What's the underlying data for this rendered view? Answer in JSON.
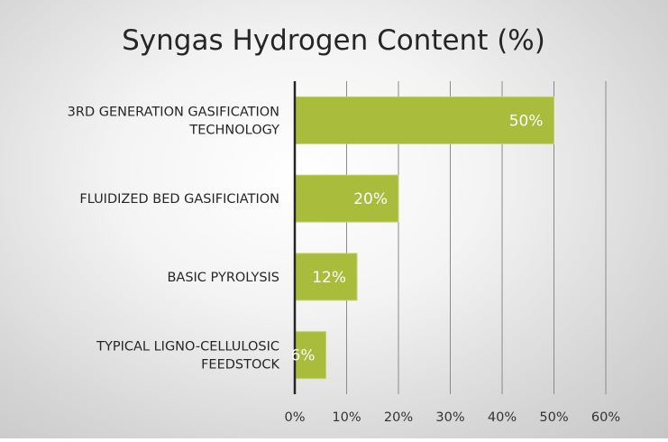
{
  "chart_data": {
    "type": "bar",
    "orientation": "horizontal",
    "title": "Syngas Hydrogen Content (%)",
    "categories": [
      [
        "3RD GENERATION GASIFICATION",
        "TECHNOLOGY"
      ],
      [
        "FLUIDIZED BED GASIFICIATION"
      ],
      [
        "BASIC PYROLYSIS"
      ],
      [
        "TYPICAL LIGNO-CELLULOSIC",
        "FEEDSTOCK"
      ]
    ],
    "values": [
      50,
      20,
      12,
      6
    ],
    "data_labels": [
      "50%",
      "20%",
      "12%",
      "6%"
    ],
    "x_ticks": [
      "0%",
      "10%",
      "20%",
      "30%",
      "40%",
      "50%",
      "60%"
    ],
    "xlim": [
      0,
      60
    ],
    "xlabel": "",
    "ylabel": "",
    "grid": "vertical",
    "legend": "none",
    "colors": {
      "bar": "#a9bc3c",
      "bar_border": "#c4d36a",
      "grid": "#8a8a8a",
      "axis": "#262626",
      "data_label": "#ffffff"
    }
  }
}
